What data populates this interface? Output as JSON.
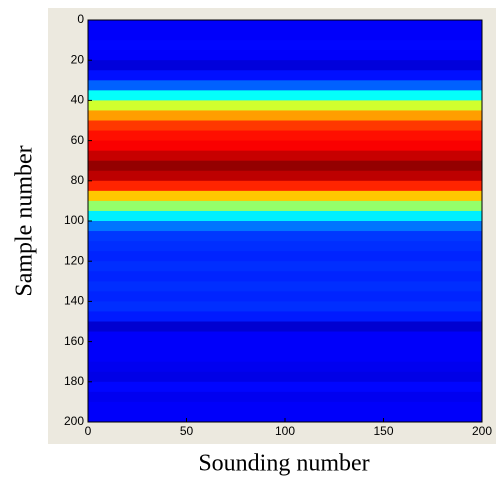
{
  "chart_data": {
    "type": "heatmap",
    "colormap": "jet",
    "clim": [
      0,
      1
    ],
    "xlabel": "Sounding number",
    "ylabel": "Sample number",
    "xlim": [
      0,
      200
    ],
    "xticks": [
      0,
      50,
      100,
      150,
      200
    ],
    "ylim": [
      0,
      200
    ],
    "yticks": [
      0,
      20,
      40,
      60,
      80,
      100,
      120,
      140,
      160,
      180,
      200
    ],
    "y_reversed": true,
    "y_edges": [
      0,
      5,
      10,
      15,
      20,
      25,
      30,
      35,
      40,
      45,
      50,
      55,
      60,
      65,
      70,
      75,
      80,
      85,
      90,
      95,
      100,
      105,
      110,
      115,
      120,
      125,
      130,
      135,
      140,
      145,
      150,
      155,
      160,
      165,
      170,
      175,
      180,
      185,
      190,
      195,
      200
    ],
    "values": [
      0.12,
      0.12,
      0.13,
      0.12,
      0.09,
      0.14,
      0.22,
      0.38,
      0.58,
      0.72,
      0.82,
      0.86,
      0.88,
      0.93,
      0.98,
      0.94,
      0.84,
      0.68,
      0.52,
      0.36,
      0.24,
      0.18,
      0.17,
      0.16,
      0.17,
      0.16,
      0.17,
      0.16,
      0.17,
      0.15,
      0.08,
      0.12,
      0.12,
      0.12,
      0.11,
      0.1,
      0.13,
      0.11,
      0.12,
      0.12
    ]
  }
}
